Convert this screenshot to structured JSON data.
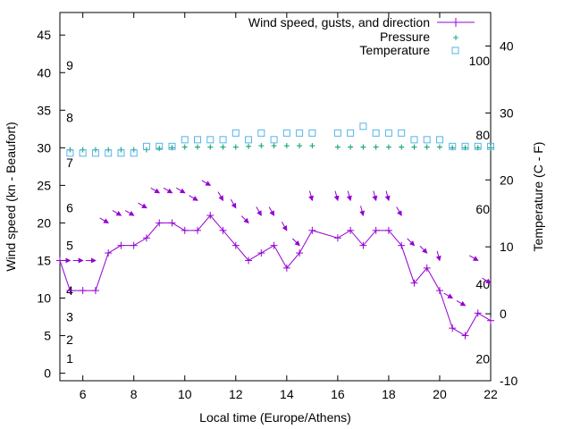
{
  "chart_data": {
    "type": "line",
    "title": "",
    "xlabel": "Local time (Europe/Athens)",
    "ylabel_left": "Wind speed (kn - Beaufort)",
    "ylabel_right": "Temperature (C - F)",
    "xlim": [
      5.1,
      22
    ],
    "ylim_left": [
      -1,
      48
    ],
    "ylim_right": [
      -10,
      45
    ],
    "x_ticks": [
      6,
      8,
      10,
      12,
      14,
      16,
      18,
      20,
      22
    ],
    "y_left_ticks": [
      0,
      5,
      10,
      15,
      20,
      25,
      30,
      35,
      40,
      45
    ],
    "y_right_ticks": [
      -10,
      0,
      10,
      20,
      30,
      40
    ],
    "beaufort_labels": [
      {
        "label": "1",
        "kn": 2
      },
      {
        "label": "2",
        "kn": 4.5
      },
      {
        "label": "3",
        "kn": 7.5
      },
      {
        "label": "4",
        "kn": 11
      },
      {
        "label": "5",
        "kn": 17
      },
      {
        "label": "6",
        "kn": 22
      },
      {
        "label": "7",
        "kn": 28
      },
      {
        "label": "8",
        "kn": 34
      },
      {
        "label": "9",
        "kn": 41
      }
    ],
    "fahrenheit_labels": [
      {
        "label": "20",
        "c": -6.7
      },
      {
        "label": "40",
        "c": 4.4
      },
      {
        "label": "60",
        "c": 15.6
      },
      {
        "label": "80",
        "c": 26.7
      },
      {
        "label": "100",
        "c": 37.8
      }
    ],
    "legend": {
      "position": "top-right",
      "entries": [
        "Wind speed, gusts, and direction",
        "Pressure",
        "Temperature"
      ]
    },
    "colors": {
      "wind": "#9400d3",
      "pressure": "#009e73",
      "temperature": "#56b4e9"
    },
    "series": [
      {
        "name": "Wind speed, gusts, and direction",
        "axis": "left",
        "x": [
          5.1,
          5.5,
          6,
          6.5,
          7,
          7.5,
          8,
          8.5,
          9,
          9.5,
          10,
          10.5,
          11,
          11.5,
          12,
          12.5,
          13,
          13.5,
          14,
          14.5,
          15,
          16,
          16.5,
          17,
          17.5,
          18,
          18.5,
          19,
          19.5,
          20,
          20.5,
          21,
          21.5,
          22
        ],
        "values": [
          15,
          11,
          11,
          11,
          16,
          17,
          17,
          18,
          20,
          20,
          19,
          19,
          21,
          19,
          17,
          15,
          16,
          17,
          14,
          16,
          19,
          18,
          19,
          17,
          19,
          19,
          17,
          12,
          14,
          11,
          6,
          5,
          8,
          7
        ]
      },
      {
        "name": "Gusts",
        "axis": "left",
        "x": [
          5.5,
          6,
          6.5,
          7,
          7.5,
          8,
          8.5,
          9,
          9.5,
          10,
          10.5,
          11,
          11.5,
          12,
          12.5,
          13,
          13.5,
          14,
          14.5,
          15,
          16,
          16.5,
          17,
          17.5,
          18,
          18.5,
          19,
          19.5,
          20,
          20.5,
          21,
          21.5,
          22
        ],
        "values": [
          15,
          15,
          15,
          20,
          21,
          21,
          22,
          24,
          24,
          24,
          23,
          25,
          23,
          22,
          20,
          21,
          21,
          19,
          17,
          23,
          23,
          23,
          21,
          23,
          23,
          21,
          17,
          16,
          15,
          10,
          9,
          15,
          12
        ],
        "directions_deg": [
          270,
          270,
          270,
          300,
          300,
          300,
          300,
          300,
          300,
          300,
          300,
          300,
          330,
          330,
          315,
          330,
          330,
          330,
          315,
          345,
          345,
          345,
          345,
          345,
          345,
          330,
          315,
          315,
          345,
          300,
          300,
          300,
          300
        ]
      },
      {
        "name": "Pressure",
        "axis": "right",
        "x": [
          5.5,
          6,
          6.5,
          7,
          7.5,
          8,
          8.5,
          9,
          9.5,
          10,
          10.5,
          11,
          11.5,
          12,
          12.5,
          13,
          13.5,
          14,
          14.5,
          15,
          16,
          16.5,
          17,
          17.5,
          18,
          18.5,
          19,
          19.5,
          20,
          20.5,
          21,
          21.5,
          22
        ],
        "values": [
          24.5,
          24.5,
          24.5,
          24.5,
          24.5,
          24.5,
          24.5,
          24.7,
          24.8,
          24.9,
          24.9,
          24.9,
          24.9,
          24.9,
          25,
          25.1,
          25.1,
          25.1,
          25.1,
          25.1,
          24.9,
          24.9,
          24.9,
          24.9,
          24.9,
          24.9,
          24.9,
          24.9,
          24.9,
          24.8,
          24.8,
          24.8,
          24.8
        ]
      },
      {
        "name": "Temperature",
        "axis": "right",
        "x": [
          5.5,
          6,
          6.5,
          7,
          7.5,
          8,
          8.5,
          9,
          9.5,
          10,
          10.5,
          11,
          11.5,
          12,
          12.5,
          13,
          13.5,
          14,
          14.5,
          15,
          16,
          16.5,
          17,
          17.5,
          18,
          18.5,
          19,
          19.5,
          20,
          20.5,
          21,
          21.5,
          22
        ],
        "values": [
          24,
          24,
          24,
          24,
          24,
          24,
          25,
          25,
          25,
          26,
          26,
          26,
          26,
          27,
          26,
          27,
          26,
          27,
          27,
          27,
          27,
          27,
          28,
          27,
          27,
          27,
          26,
          26,
          26,
          25,
          25,
          25,
          25
        ]
      }
    ]
  }
}
